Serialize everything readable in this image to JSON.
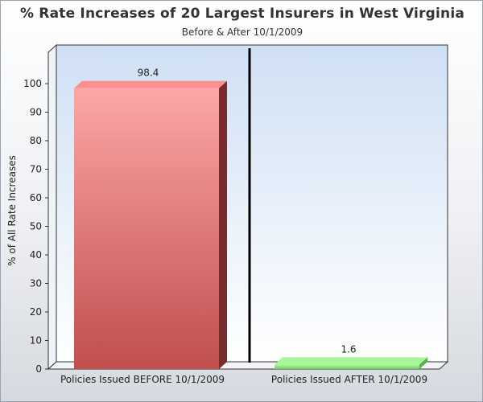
{
  "chart_data": {
    "type": "bar",
    "title": "% Rate Increases of 20 Largest Insurers in West Virginia",
    "subtitle": "Before & After 10/1/2009",
    "ylabel": "% of All Rate Increases",
    "xlabel": "",
    "ylim": [
      0,
      100
    ],
    "yticks": [
      "0",
      "10",
      "20",
      "30",
      "40",
      "50",
      "60",
      "70",
      "80",
      "90",
      "100"
    ],
    "categories": [
      "Policies Issued BEFORE 10/1/2009",
      "Policies Issued AFTER 10/1/2009"
    ],
    "values": [
      98.4,
      1.6
    ],
    "value_labels": [
      "98.4",
      "1.6"
    ],
    "colors": [
      "#e06a6a",
      "#8ee27a"
    ],
    "grid": false,
    "legend": "none"
  }
}
